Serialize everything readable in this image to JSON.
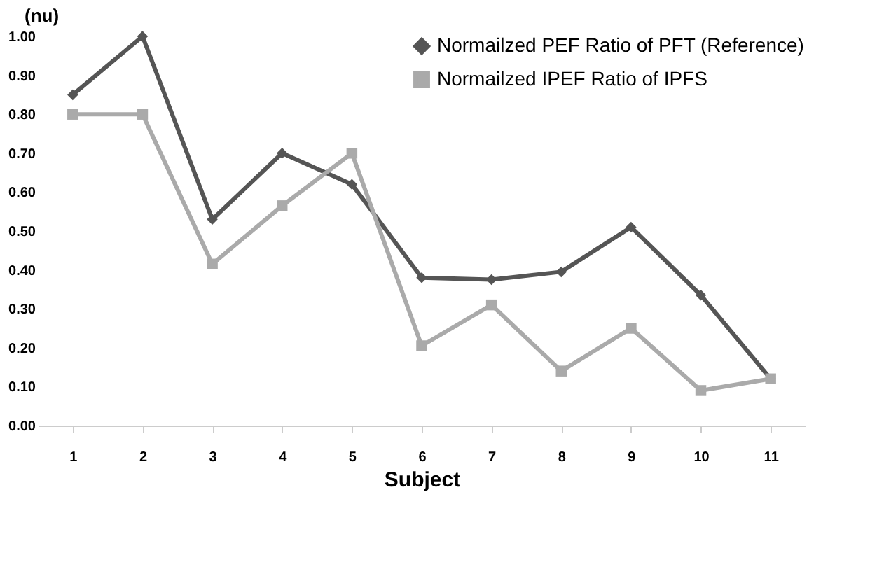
{
  "chart_data": {
    "type": "line",
    "xlabel": "Subject",
    "ylabel": "(nu)",
    "categories": [
      "1",
      "2",
      "3",
      "4",
      "5",
      "6",
      "7",
      "8",
      "9",
      "10",
      "11"
    ],
    "series": [
      {
        "name": "Normailzed PEF Ratio of PFT (Reference)",
        "color": "#555555",
        "marker": "diamond",
        "values": [
          0.85,
          1.0,
          0.53,
          0.7,
          0.62,
          0.38,
          0.375,
          0.395,
          0.51,
          0.335,
          0.12
        ]
      },
      {
        "name": "Normailzed IPEF Ratio of IPFS",
        "color": "#aaaaaa",
        "marker": "square",
        "values": [
          0.8,
          0.8,
          0.415,
          0.565,
          0.7,
          0.205,
          0.31,
          0.14,
          0.25,
          0.09,
          0.12
        ]
      }
    ],
    "ylim": [
      0,
      1
    ],
    "yticks": [
      {
        "value": 0,
        "label": "0.00"
      },
      {
        "value": 0.1,
        "label": "0.10"
      },
      {
        "value": 0.2,
        "label": "0.20"
      },
      {
        "value": 0.3,
        "label": "0.30"
      },
      {
        "value": 0.4,
        "label": "0.40"
      },
      {
        "value": 0.5,
        "label": "0.50"
      },
      {
        "value": 0.6,
        "label": "0.60"
      },
      {
        "value": 0.7,
        "label": "0.70"
      },
      {
        "value": 0.8,
        "label": "0.80"
      },
      {
        "value": 0.9,
        "label": "0.90"
      },
      {
        "value": 1.0,
        "label": "1.00"
      }
    ],
    "grid": false,
    "legend": "top right",
    "line_style": "solid"
  }
}
